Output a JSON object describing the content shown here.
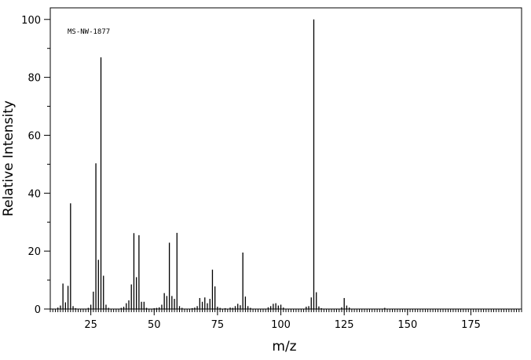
{
  "chart_data": {
    "type": "bar",
    "title": "",
    "annotation": "MS-NW-1877",
    "xlabel": "m/z",
    "ylabel": "Relative Intensity",
    "xlim": [
      9,
      195
    ],
    "ylim": [
      0,
      104
    ],
    "x_major_ticks": [
      25,
      50,
      75,
      100,
      125,
      150,
      175
    ],
    "y_major_ticks": [
      0,
      20,
      40,
      60,
      80,
      100
    ],
    "grid": false,
    "legend": "none",
    "bar_color": "#000000",
    "peaks": [
      {
        "x": 12,
        "y": 0.5
      },
      {
        "x": 13,
        "y": 1.2
      },
      {
        "x": 14,
        "y": 8.8
      },
      {
        "x": 15,
        "y": 2.3
      },
      {
        "x": 16,
        "y": 8.0
      },
      {
        "x": 17,
        "y": 36.5
      },
      {
        "x": 18,
        "y": 1.0
      },
      {
        "x": 19,
        "y": 0.3
      },
      {
        "x": 24,
        "y": 0.4
      },
      {
        "x": 25,
        "y": 1.5
      },
      {
        "x": 26,
        "y": 6.0
      },
      {
        "x": 27,
        "y": 50.3
      },
      {
        "x": 28,
        "y": 17.0
      },
      {
        "x": 29,
        "y": 86.9
      },
      {
        "x": 30,
        "y": 11.5
      },
      {
        "x": 31,
        "y": 1.5
      },
      {
        "x": 32,
        "y": 0.4
      },
      {
        "x": 37,
        "y": 0.4
      },
      {
        "x": 38,
        "y": 0.8
      },
      {
        "x": 39,
        "y": 2.0
      },
      {
        "x": 40,
        "y": 3.0
      },
      {
        "x": 41,
        "y": 8.5
      },
      {
        "x": 42,
        "y": 26.2
      },
      {
        "x": 43,
        "y": 11.0
      },
      {
        "x": 44,
        "y": 25.5
      },
      {
        "x": 45,
        "y": 2.5
      },
      {
        "x": 46,
        "y": 2.5
      },
      {
        "x": 47,
        "y": 0.4
      },
      {
        "x": 50,
        "y": 0.3
      },
      {
        "x": 51,
        "y": 0.4
      },
      {
        "x": 52,
        "y": 0.6
      },
      {
        "x": 53,
        "y": 1.5
      },
      {
        "x": 54,
        "y": 5.5
      },
      {
        "x": 55,
        "y": 4.5
      },
      {
        "x": 56,
        "y": 22.9
      },
      {
        "x": 57,
        "y": 4.5
      },
      {
        "x": 58,
        "y": 3.5
      },
      {
        "x": 59,
        "y": 26.3
      },
      {
        "x": 60,
        "y": 1.0
      },
      {
        "x": 61,
        "y": 0.4
      },
      {
        "x": 65,
        "y": 0.3
      },
      {
        "x": 66,
        "y": 0.5
      },
      {
        "x": 67,
        "y": 1.0
      },
      {
        "x": 68,
        "y": 3.8
      },
      {
        "x": 69,
        "y": 2.5
      },
      {
        "x": 70,
        "y": 4.0
      },
      {
        "x": 71,
        "y": 2.0
      },
      {
        "x": 72,
        "y": 3.5
      },
      {
        "x": 73,
        "y": 13.6
      },
      {
        "x": 74,
        "y": 7.8
      },
      {
        "x": 75,
        "y": 0.8
      },
      {
        "x": 76,
        "y": 0.4
      },
      {
        "x": 78,
        "y": 0.3
      },
      {
        "x": 80,
        "y": 0.5
      },
      {
        "x": 81,
        "y": 0.4
      },
      {
        "x": 82,
        "y": 1.0
      },
      {
        "x": 83,
        "y": 1.8
      },
      {
        "x": 84,
        "y": 1.3
      },
      {
        "x": 85,
        "y": 19.5
      },
      {
        "x": 86,
        "y": 4.3
      },
      {
        "x": 87,
        "y": 1.0
      },
      {
        "x": 88,
        "y": 0.4
      },
      {
        "x": 95,
        "y": 0.6
      },
      {
        "x": 96,
        "y": 1.0
      },
      {
        "x": 97,
        "y": 1.8
      },
      {
        "x": 98,
        "y": 2.0
      },
      {
        "x": 99,
        "y": 1.2
      },
      {
        "x": 100,
        "y": 1.5
      },
      {
        "x": 101,
        "y": 0.5
      },
      {
        "x": 110,
        "y": 0.8
      },
      {
        "x": 111,
        "y": 1.0
      },
      {
        "x": 112,
        "y": 4.0
      },
      {
        "x": 113,
        "y": 100.0
      },
      {
        "x": 114,
        "y": 5.8
      },
      {
        "x": 115,
        "y": 0.9
      },
      {
        "x": 116,
        "y": 0.3
      },
      {
        "x": 124,
        "y": 0.6
      },
      {
        "x": 125,
        "y": 3.8
      },
      {
        "x": 126,
        "y": 1.2
      },
      {
        "x": 127,
        "y": 0.5
      },
      {
        "x": 141,
        "y": 0.4
      }
    ]
  }
}
